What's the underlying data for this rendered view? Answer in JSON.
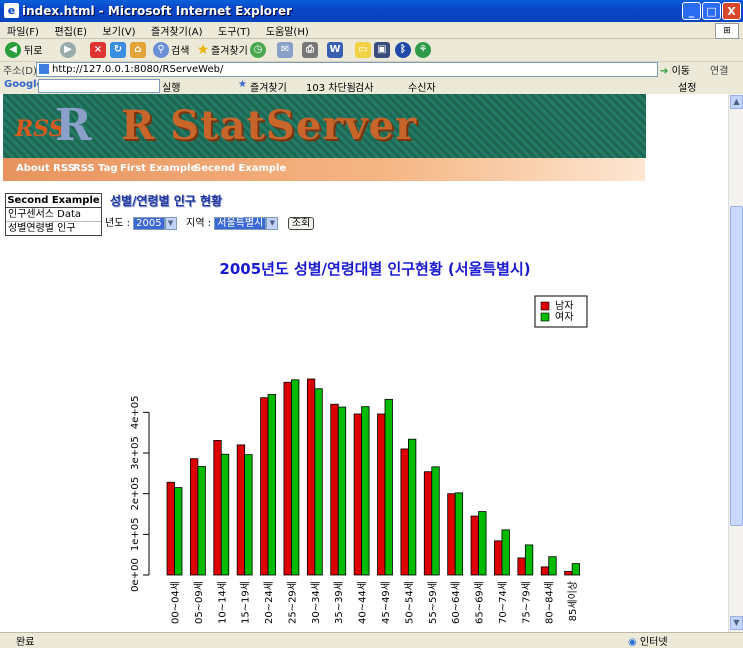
{
  "window": {
    "title": "index.html - Microsoft Internet Explorer",
    "minimize": "_",
    "maximize": "□",
    "close": "X"
  },
  "menu": [
    "파일(F)",
    "편집(E)",
    "보기(V)",
    "즐겨찾기(A)",
    "도구(T)",
    "도움말(H)"
  ],
  "toolbar": {
    "back": "뒤로",
    "search": "검색",
    "favorites": "즐겨찾기"
  },
  "address": {
    "label": "주소(D)",
    "url": "http://127.0.0.1:8080/RServeWeb/",
    "go": "이동",
    "links": "연결"
  },
  "googlebar": {
    "logo": "Google",
    "run": "실행",
    "favorites": "즐겨찾기",
    "blocked": "103 차단됨",
    "check": "검사",
    "autofill": "수신자",
    "settings": "설정"
  },
  "banner": {
    "rss": "RSS",
    "r": "R",
    "name": "R StatServer"
  },
  "nav": [
    "About RSS",
    "RSS Tag",
    "First Example",
    "Secend Example"
  ],
  "leftnav": {
    "header": "Second Example",
    "items": [
      "인구센서스 Data",
      "성별연령별 인구"
    ]
  },
  "page": {
    "title": "성별/연령별 인구 현황",
    "year_label": "년도 :",
    "year_value": "2005",
    "region_label": "지역 :",
    "region_value": "서울특별시",
    "query_button": "조회"
  },
  "chart_data": {
    "type": "bar",
    "title": "2005년도 성별/연령대별 인구현황 (서울특별시)",
    "xlabel": "",
    "ylabel": "",
    "categories": [
      "00~04세",
      "05~09세",
      "10~14세",
      "15~19세",
      "20~24세",
      "25~29세",
      "30~34세",
      "35~39세",
      "40~44세",
      "45~49세",
      "50~54세",
      "55~59세",
      "60~64세",
      "65~69세",
      "70~74세",
      "75~79세",
      "80~84세",
      "85세이상"
    ],
    "series": [
      {
        "name": "남자",
        "color": "#dd0000",
        "values": [
          228000,
          286000,
          331000,
          320000,
          436000,
          474000,
          482000,
          420000,
          396000,
          396000,
          310000,
          254000,
          200000,
          145000,
          84000,
          42000,
          20000,
          9000
        ]
      },
      {
        "name": "여자",
        "color": "#00bb00",
        "values": [
          215000,
          267000,
          297000,
          296000,
          444000,
          480000,
          458000,
          413000,
          414000,
          432000,
          334000,
          266000,
          202000,
          156000,
          111000,
          74000,
          45000,
          28000
        ]
      }
    ],
    "yticks": [
      "0e+00",
      "1e+05",
      "2e+05",
      "3e+05",
      "4e+05"
    ],
    "ylim": [
      0,
      480000
    ],
    "legend_position": "top-right"
  },
  "status": {
    "left": "완료",
    "right": "인터넷"
  }
}
